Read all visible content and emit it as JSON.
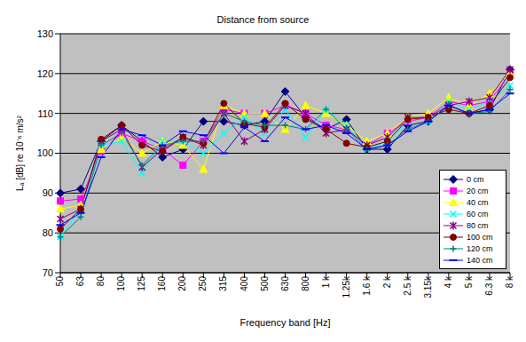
{
  "chart_data": {
    "type": "line",
    "title": "Distance from source",
    "x_label": "Frequency band [Hz]",
    "y_label": "Lₐ [dB] re 10⁻⁶ m/s²",
    "categories": [
      "50",
      "63",
      "80",
      "100",
      "125",
      "160",
      "200",
      "250",
      "315",
      "400",
      "500",
      "630",
      "800",
      "1 k",
      "1.25k",
      "1.6 k",
      "2 k",
      "2.5 k",
      "3.15k",
      "4 k",
      "5 k",
      "6.3 k",
      "8 k"
    ],
    "ylim": [
      70,
      130
    ],
    "yticks": [
      70,
      80,
      90,
      100,
      110,
      120,
      130
    ],
    "grid": true,
    "legend": "lower right",
    "series": [
      {
        "name": "0 cm",
        "color": "#000080",
        "marker": "diamond",
        "values": [
          90,
          91,
          103,
          107,
          103,
          99,
          101,
          108,
          108,
          107,
          108,
          115.5,
          109,
          106,
          108.5,
          101,
          101,
          107,
          108,
          112,
          110,
          111,
          121
        ]
      },
      {
        "name": "20 cm",
        "color": "#ff00ff",
        "marker": "square",
        "values": [
          88,
          88.5,
          100.5,
          105,
          103,
          101,
          97,
          103,
          111,
          110,
          110,
          112,
          110,
          107,
          106,
          102,
          105,
          108,
          109,
          113,
          112,
          113,
          120
        ]
      },
      {
        "name": "40 cm",
        "color": "#ffff00",
        "marker": "triangle",
        "values": [
          86,
          87,
          101,
          104,
          100,
          103,
          102,
          96,
          112,
          110,
          110,
          106,
          112,
          110,
          107,
          103,
          105,
          109,
          110,
          114,
          112,
          115,
          120
        ]
      },
      {
        "name": "60 cm",
        "color": "#00ffff",
        "marker": "x",
        "values": [
          79,
          86,
          102,
          103,
          95,
          103,
          103,
          100,
          105,
          109,
          105,
          111,
          104,
          111,
          107,
          101,
          103,
          108,
          108,
          113,
          111,
          113,
          117
        ]
      },
      {
        "name": "80 cm",
        "color": "#800080",
        "marker": "star",
        "values": [
          83.5,
          86,
          103,
          106,
          96.5,
          101,
          104,
          102,
          110,
          103,
          106,
          112,
          110,
          105,
          106,
          102,
          104,
          109,
          109,
          112,
          113,
          114,
          121
        ]
      },
      {
        "name": "100 cm",
        "color": "#800000",
        "marker": "circle",
        "values": [
          81,
          86,
          103.5,
          107,
          102,
          100.5,
          104,
          102.5,
          112.5,
          107.5,
          106.5,
          112.5,
          108.5,
          106,
          102.5,
          101.5,
          103,
          108.5,
          109,
          111,
          110,
          112,
          119
        ]
      },
      {
        "name": "120 cm",
        "color": "#008080",
        "marker": "plus",
        "values": [
          79,
          84,
          102,
          105,
          97,
          102,
          103,
          103,
          110,
          108,
          107,
          107,
          106,
          111,
          106,
          101,
          102,
          106,
          108,
          112,
          110,
          110.5,
          116
        ]
      },
      {
        "name": "140 cm",
        "color": "#0000ff",
        "marker": "dash",
        "values": [
          82,
          85,
          99,
          106,
          104.5,
          102,
          105.5,
          104.5,
          100,
          106.5,
          103,
          109,
          106,
          107,
          105,
          101,
          102,
          105.5,
          108,
          112,
          110,
          111,
          115
        ]
      }
    ]
  }
}
